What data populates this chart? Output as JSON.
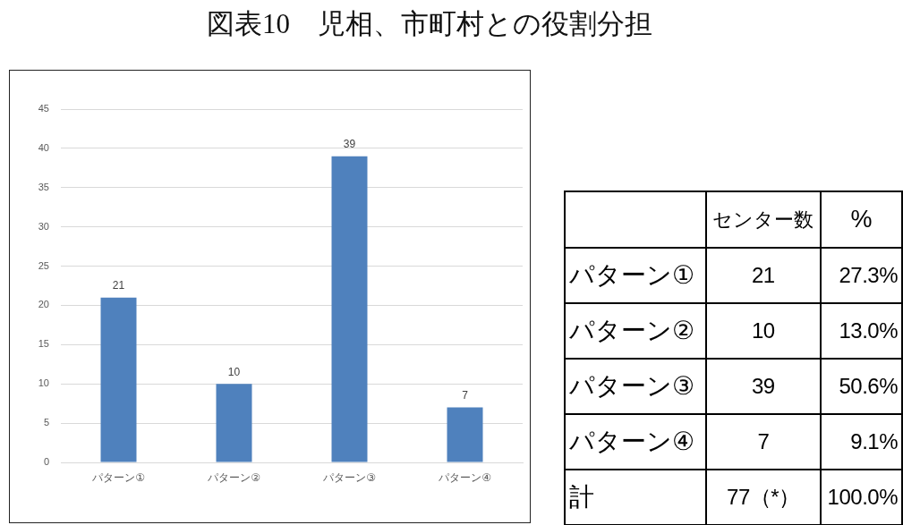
{
  "chart_data": [
    {
      "type": "bar",
      "title": "図表10　児相、市町村との役割分担",
      "categories": [
        "パターン①",
        "パターン②",
        "パターン③",
        "パターン④"
      ],
      "values": [
        21,
        10,
        39,
        7
      ],
      "color": "#4f81bd",
      "ylim": [
        0,
        45
      ],
      "yticks": [
        0,
        5,
        10,
        15,
        20,
        25,
        30,
        35,
        40,
        45
      ],
      "grid": "y",
      "data_labels": true
    },
    {
      "type": "other",
      "categories": [
        "パターン①",
        "パターン②",
        "パターン③",
        "パターン④",
        "計"
      ],
      "series": [
        {
          "name": "センター数",
          "values": [
            21,
            10,
            39,
            7,
            77
          ],
          "value_labels": [
            "21",
            "10",
            "39",
            "7",
            "77（*）"
          ]
        },
        {
          "name": "%",
          "values": [
            27.3,
            13.0,
            50.6,
            9.1,
            100.0
          ],
          "value_labels": [
            "27.3%",
            "13.0%",
            "50.6%",
            "9.1%",
            "100.0%"
          ]
        }
      ]
    }
  ]
}
